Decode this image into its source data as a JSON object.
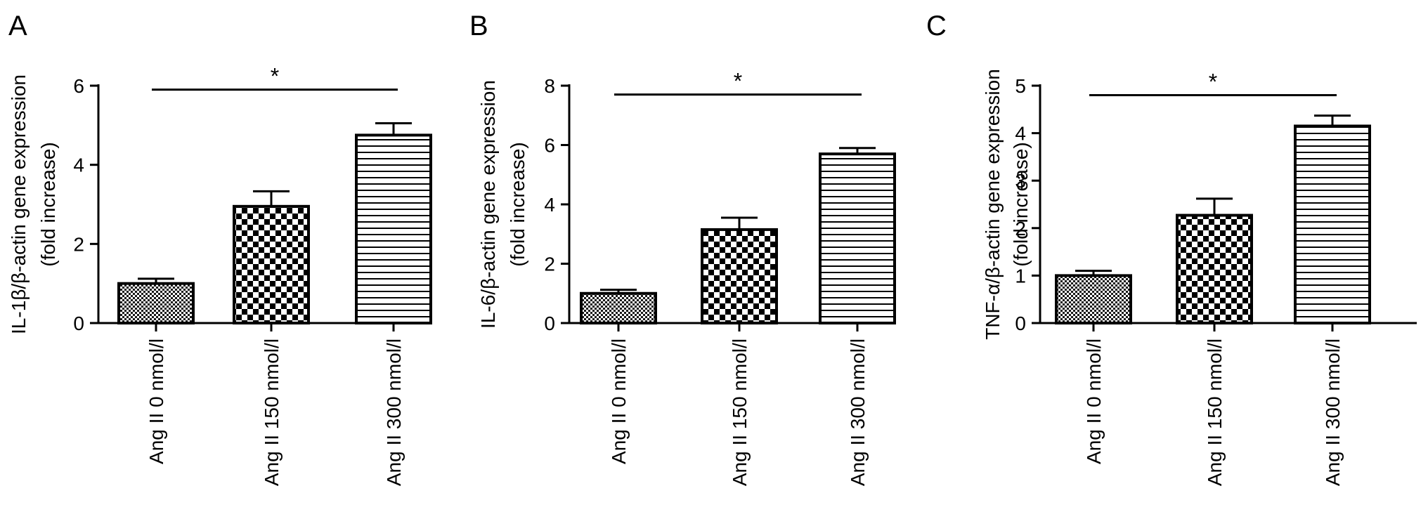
{
  "chart_data": [
    {
      "type": "bar",
      "panel": "A",
      "ylabel": [
        "IL-1β/β-actin gene expression",
        "(fold increase)"
      ],
      "categories": [
        "Ang II 0 nmol/l",
        "Ang II 150 nmol/l",
        "Ang II 300 nmol/l"
      ],
      "values": [
        1.0,
        2.95,
        4.75
      ],
      "errors": [
        0.12,
        0.38,
        0.3
      ],
      "patterns": [
        "fine-check",
        "coarse-check",
        "horizontal-stripes"
      ],
      "ylim": [
        0,
        6
      ],
      "yticks": [
        0,
        2,
        4,
        6
      ],
      "significance": {
        "from": 0,
        "to": 2,
        "label": "*",
        "y": 5.9
      }
    },
    {
      "type": "bar",
      "panel": "B",
      "ylabel": [
        "IL-6/β-actin gene expression",
        "(fold increase)"
      ],
      "categories": [
        "Ang II 0 nmol/l",
        "Ang II 150 nmol/l",
        "Ang II 300 nmol/l"
      ],
      "values": [
        1.0,
        3.15,
        5.7
      ],
      "errors": [
        0.12,
        0.4,
        0.2
      ],
      "patterns": [
        "fine-check",
        "coarse-check",
        "horizontal-stripes"
      ],
      "ylim": [
        0,
        8
      ],
      "yticks": [
        0,
        2,
        4,
        6,
        8
      ],
      "significance": {
        "from": 0,
        "to": 2,
        "label": "*",
        "y": 7.7
      }
    },
    {
      "type": "bar",
      "panel": "C",
      "ylabel": [
        "TNF-α/β-actin gene expression",
        "(fold increase)"
      ],
      "categories": [
        "Ang II 0 nmol/l",
        "Ang II 150 nmol/l",
        "Ang II 300 nmol/l"
      ],
      "values": [
        1.0,
        2.27,
        4.15
      ],
      "errors": [
        0.1,
        0.35,
        0.22
      ],
      "patterns": [
        "fine-check",
        "coarse-check",
        "horizontal-stripes"
      ],
      "ylim": [
        0,
        5
      ],
      "yticks": [
        0,
        1,
        2,
        3,
        4,
        5
      ],
      "significance": {
        "from": 0,
        "to": 2,
        "label": "*",
        "y": 4.8
      }
    }
  ]
}
